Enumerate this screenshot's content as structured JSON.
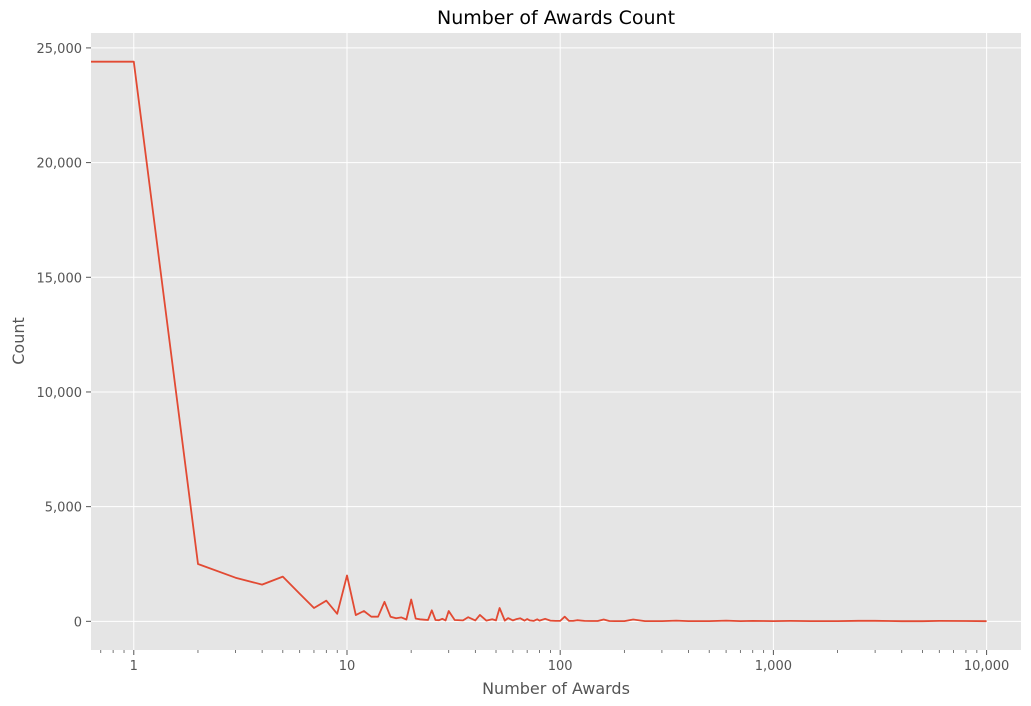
{
  "chart_data": {
    "type": "line",
    "title": "Number of Awards Count",
    "xlabel": "Number of Awards",
    "ylabel": "Count",
    "x_scale": "log",
    "xlim": [
      0.63,
      14500
    ],
    "ylim": [
      -1250,
      25650
    ],
    "grid": true,
    "legend": "none",
    "colors": {
      "background": "#E5E5E5",
      "grid": "#FFFFFF",
      "series": "#E24A33",
      "text": "#555555",
      "title": "#000000"
    },
    "x_ticks": [
      {
        "value": 1,
        "label": "1"
      },
      {
        "value": 10,
        "label": "10"
      },
      {
        "value": 100,
        "label": "100"
      },
      {
        "value": 1000,
        "label": "1,000"
      },
      {
        "value": 10000,
        "label": "10,000"
      }
    ],
    "y_ticks": [
      {
        "value": 0,
        "label": "0"
      },
      {
        "value": 5000,
        "label": "5,000"
      },
      {
        "value": 10000,
        "label": "10,000"
      },
      {
        "value": 15000,
        "label": "15,000"
      },
      {
        "value": 20000,
        "label": "20,000"
      },
      {
        "value": 25000,
        "label": "25,000"
      }
    ],
    "series": [
      {
        "x": [
          0,
          1,
          2,
          3,
          4,
          5,
          6,
          7,
          8,
          9,
          10,
          11,
          12,
          13,
          14,
          15,
          16,
          17,
          18,
          19,
          20,
          21,
          22,
          23,
          24,
          25,
          26,
          27,
          28,
          29,
          30,
          32,
          35,
          37,
          40,
          42,
          45,
          48,
          50,
          52,
          55,
          57,
          60,
          62,
          65,
          68,
          70,
          72,
          75,
          78,
          80,
          85,
          90,
          95,
          100,
          105,
          110,
          115,
          120,
          130,
          140,
          150,
          160,
          170,
          180,
          190,
          200,
          220,
          250,
          275,
          300,
          350,
          400,
          450,
          500,
          600,
          700,
          800,
          900,
          1000,
          1200,
          1500,
          1800,
          2000,
          2500,
          3000,
          4000,
          5000,
          6000,
          8000,
          10000
        ],
        "y": [
          24400,
          24400,
          2500,
          1900,
          1600,
          1950,
          1200,
          580,
          900,
          330,
          2000,
          270,
          450,
          200,
          200,
          850,
          200,
          130,
          170,
          80,
          950,
          120,
          90,
          70,
          60,
          480,
          60,
          50,
          110,
          40,
          450,
          60,
          40,
          180,
          40,
          280,
          30,
          90,
          40,
          580,
          30,
          140,
          40,
          90,
          130,
          30,
          100,
          40,
          20,
          90,
          30,
          110,
          30,
          20,
          20,
          200,
          20,
          20,
          50,
          20,
          15,
          15,
          80,
          15,
          10,
          10,
          10,
          80,
          10,
          10,
          10,
          30,
          10,
          10,
          10,
          30,
          10,
          20,
          15,
          10,
          20,
          10,
          10,
          10,
          25,
          25,
          5,
          5,
          20,
          15,
          5
        ]
      }
    ]
  }
}
